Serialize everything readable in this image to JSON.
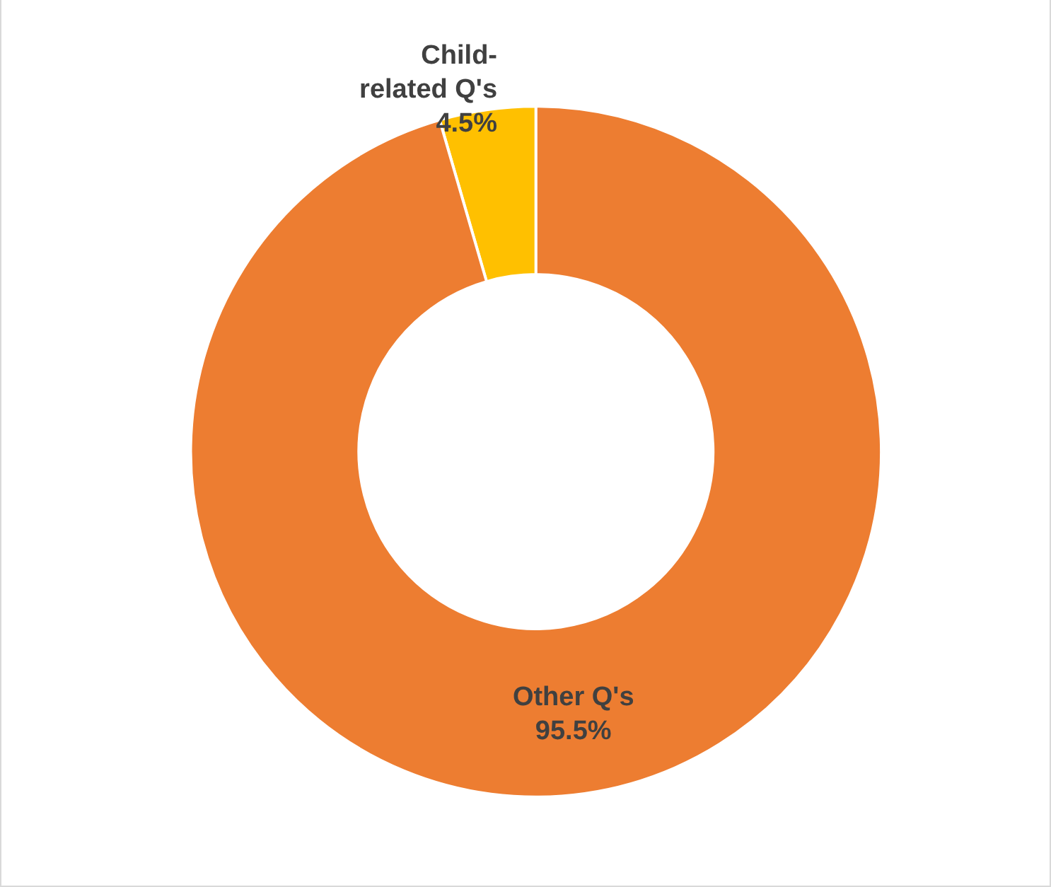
{
  "chart_data": {
    "type": "donut",
    "categories": [
      "Child-related Q's",
      "Other Q's"
    ],
    "values": [
      4.5,
      95.5
    ],
    "colors": [
      "#ffc000",
      "#ed7d31"
    ],
    "value_labels": [
      "4.5%",
      "95.5%"
    ],
    "legend": false
  }
}
